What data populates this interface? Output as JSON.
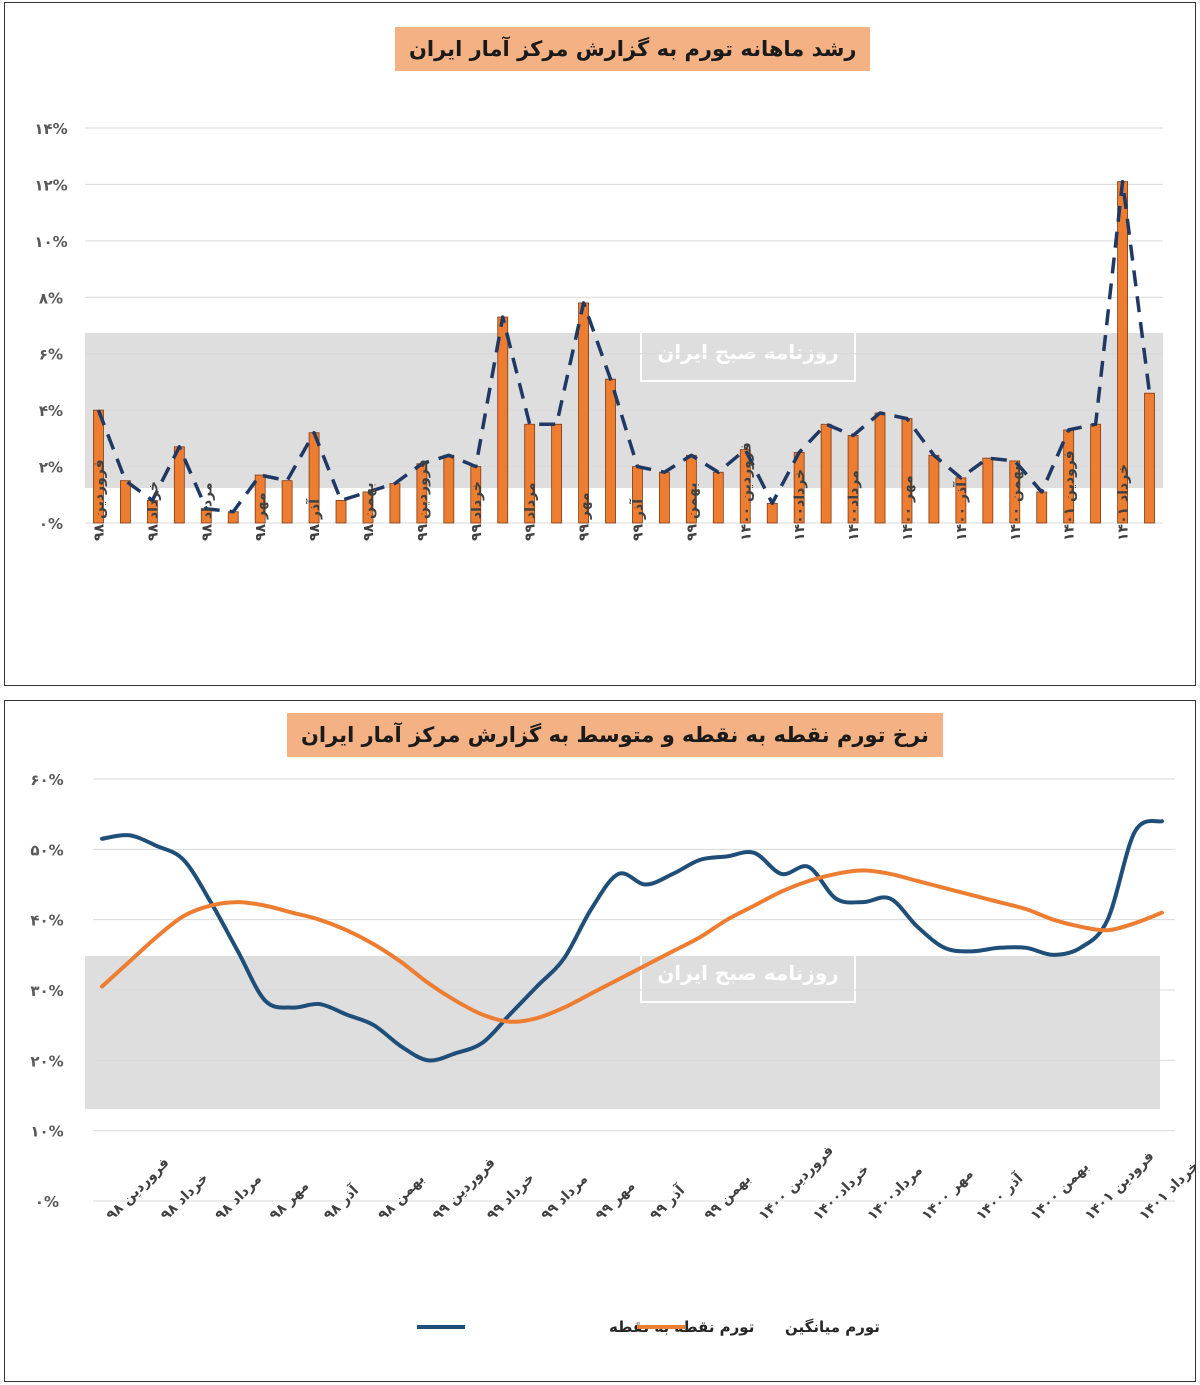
{
  "chart_data": [
    {
      "type": "bar",
      "title": "رشد ماهانه تورم به گزارش مرکز آمار ایران",
      "xlabel": "",
      "ylabel": "",
      "ylim": [
        0,
        14
      ],
      "yticks": [
        "۰%",
        "۲%",
        "۴%",
        "۶%",
        "۸%",
        "۱۰%",
        "۱۲%",
        "۱۴%"
      ],
      "tick_labels": [
        "فروردین ۹۸",
        "خرداد ۹۸",
        "مرداد ۹۸",
        "مهر ۹۸",
        "آذر ۹۸",
        "بهمن ۹۸",
        "فروردین ۹۹",
        "خرداد ۹۹",
        "مرداد ۹۹",
        "مهر ۹۹",
        "آذر ۹۹",
        "بهمن ۹۹",
        "فروردین ۱۴۰۰",
        "خرداد۱۴۰۰",
        "مرداد۱۴۰۰",
        "مهر ۱۴۰۰",
        "آذر ۱۴۰۰",
        "بهمن ۱۴۰۰",
        "فرودین ۱۴۰۱",
        "خرداد ۱۴۰۱"
      ],
      "values": [
        4.0,
        1.5,
        0.8,
        2.7,
        0.5,
        0.4,
        1.7,
        1.5,
        3.2,
        0.8,
        1.1,
        1.4,
        2.1,
        2.4,
        2.0,
        7.3,
        3.5,
        3.5,
        7.8,
        5.1,
        2.0,
        1.8,
        2.4,
        1.8,
        2.6,
        0.7,
        2.5,
        3.5,
        3.1,
        3.9,
        3.7,
        2.4,
        1.6,
        2.3,
        2.2,
        1.1,
        3.3,
        3.5,
        12.1,
        4.6
      ],
      "grid": true,
      "watermark": "روزنامه صبح ایران"
    },
    {
      "type": "line",
      "title": "نرخ تورم نقطه به نقطه و متوسط به گزارش مرکز آمار ایران",
      "xlabel": "",
      "ylabel": "",
      "ylim": [
        0,
        60
      ],
      "yticks": [
        "۰%",
        "۱۰%",
        "۲۰%",
        "۳۰%",
        "۴۰%",
        "۵۰%",
        "۶۰%"
      ],
      "tick_labels": [
        "فروردین ۹۸",
        "خرداد ۹۸",
        "مرداد ۹۸",
        "مهر ۹۸",
        "آذر ۹۸",
        "بهمن ۹۸",
        "فروردین ۹۹",
        "خرداد ۹۹",
        "مرداد ۹۹",
        "مهر ۹۹",
        "آذر ۹۹",
        "بهمن ۹۹",
        "فروردین ۱۴۰۰",
        "خرداد۱۴۰۰",
        "مرداد۱۴۰۰",
        "مهر ۱۴۰۰",
        "آذر ۱۴۰۰",
        "بهمن ۱۴۰۰",
        "فرودین ۱۴۰۱",
        "خرداد ۱۴۰۱"
      ],
      "series": [
        {
          "name": "تورم نقطه به نقطه",
          "color": "#1f4e79",
          "values": [
            51.5,
            52.0,
            50.5,
            48.5,
            42.5,
            35.5,
            28.5,
            27.5,
            28.0,
            26.5,
            25.0,
            22.0,
            20.0,
            21.0,
            22.5,
            26.5,
            30.5,
            34.5,
            41.5,
            46.5,
            45.0,
            46.5,
            48.5,
            49.0,
            49.5,
            46.5,
            47.5,
            43.0,
            42.5,
            43.0,
            39.0,
            36.0,
            35.5,
            36.0,
            36.0,
            35.0,
            36.0,
            40.0,
            52.5,
            54.0
          ]
        },
        {
          "name": "تورم میانگین",
          "color": "#ed7d31",
          "values": [
            30.5,
            34.0,
            37.5,
            40.5,
            42.0,
            42.5,
            42.0,
            41.0,
            40.0,
            38.5,
            36.5,
            34.0,
            31.0,
            28.5,
            26.5,
            25.5,
            26.0,
            27.5,
            29.5,
            31.5,
            33.5,
            35.5,
            37.5,
            40.0,
            42.0,
            44.0,
            45.5,
            46.5,
            47.0,
            46.5,
            45.5,
            44.5,
            43.5,
            42.5,
            41.5,
            40.0,
            39.0,
            38.5,
            39.5,
            41.0
          ]
        }
      ],
      "legend_position": "bottom",
      "grid": true,
      "watermark": "روزنامه صبح ایران"
    }
  ]
}
